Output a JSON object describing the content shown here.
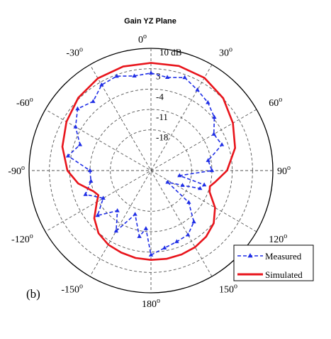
{
  "chart_data": {
    "type": "polar",
    "title": "Gain YZ Plane",
    "panel_label": "(b)",
    "unit_label": "10 dB",
    "radial_ticks": [
      "3",
      "-4",
      "-11",
      "-18"
    ],
    "radial_values": [
      3,
      -4,
      -11,
      -18
    ],
    "radial_range": [
      -32,
      10
    ],
    "angle_ticks": [
      {
        "angle": 0,
        "label": "0",
        "sup": "o"
      },
      {
        "angle": 30,
        "label": "30",
        "sup": "o"
      },
      {
        "angle": 60,
        "label": "60",
        "sup": "o"
      },
      {
        "angle": 90,
        "label": "90",
        "sup": "o"
      },
      {
        "angle": 120,
        "label": "120",
        "sup": "o"
      },
      {
        "angle": 150,
        "label": "150",
        "sup": "o"
      },
      {
        "angle": 180,
        "label": "180",
        "sup": "o"
      },
      {
        "angle": -150,
        "label": "-150",
        "sup": "o"
      },
      {
        "angle": -120,
        "label": "-120",
        "sup": "o"
      },
      {
        "angle": -90,
        "label": "-90",
        "sup": "o"
      },
      {
        "angle": -60,
        "label": "-60",
        "sup": "o"
      },
      {
        "angle": -30,
        "label": "-30",
        "sup": "o"
      }
    ],
    "grid": true,
    "legend_position": "bottom-right",
    "series": [
      {
        "name": "Simulated",
        "color": "#e8141b",
        "style": "solid",
        "points": [
          [
            0,
            5.0
          ],
          [
            15,
            5.2
          ],
          [
            30,
            4.8
          ],
          [
            45,
            3.2
          ],
          [
            60,
            0.6
          ],
          [
            75,
            -2.0
          ],
          [
            90,
            -5.8
          ],
          [
            100,
            -9.5
          ],
          [
            105,
            -11.0
          ],
          [
            110,
            -10.5
          ],
          [
            120,
            -6.5
          ],
          [
            130,
            -3.8
          ],
          [
            140,
            -2.4
          ],
          [
            150,
            -1.6
          ],
          [
            160,
            -1.3
          ],
          [
            170,
            -1.2
          ],
          [
            180,
            -1.3
          ],
          [
            -170,
            -1.5
          ],
          [
            -160,
            -2.0
          ],
          [
            -150,
            -2.6
          ],
          [
            -140,
            -3.9
          ],
          [
            -130,
            -6.5
          ],
          [
            -120,
            -10.5
          ],
          [
            -115,
            -12.0
          ],
          [
            -110,
            -11.0
          ],
          [
            -100,
            -6.5
          ],
          [
            -90,
            -3.2
          ],
          [
            -75,
            -0.4
          ],
          [
            -60,
            1.6
          ],
          [
            -45,
            3.4
          ],
          [
            -30,
            4.6
          ],
          [
            -15,
            5.0
          ]
        ]
      },
      {
        "name": "Measured",
        "color": "#1f2ee6",
        "style": "dashed-triangle",
        "points": [
          [
            0,
            1.5
          ],
          [
            10,
            0.5
          ],
          [
            20,
            2.0
          ],
          [
            30,
            0.0
          ],
          [
            40,
            -1.5
          ],
          [
            50,
            -3.5
          ],
          [
            60,
            -7.0
          ],
          [
            70,
            -6.0
          ],
          [
            80,
            -12.0
          ],
          [
            90,
            -11.0
          ],
          [
            100,
            -22.0
          ],
          [
            105,
            -13.0
          ],
          [
            110,
            -14.0
          ],
          [
            115,
            -20.0
          ],
          [
            125,
            -25.0
          ],
          [
            130,
            -15.0
          ],
          [
            140,
            -9.0
          ],
          [
            150,
            -6.5
          ],
          [
            160,
            -6.0
          ],
          [
            170,
            -5.0
          ],
          [
            180,
            -3.0
          ],
          [
            -175,
            -12.0
          ],
          [
            -170,
            -9.0
          ],
          [
            -160,
            -16.0
          ],
          [
            -150,
            -8.0
          ],
          [
            -140,
            -14.0
          ],
          [
            -130,
            -8.0
          ],
          [
            -120,
            -13.0
          ],
          [
            -110,
            -8.0
          ],
          [
            -100,
            -11.0
          ],
          [
            -90,
            -11.0
          ],
          [
            -80,
            -3.0
          ],
          [
            -70,
            -6.0
          ],
          [
            -60,
            -2.0
          ],
          [
            -50,
            1.0
          ],
          [
            -40,
            -1.0
          ],
          [
            -30,
            2.0
          ],
          [
            -20,
            2.5
          ],
          [
            -10,
            1.0
          ]
        ]
      }
    ]
  }
}
